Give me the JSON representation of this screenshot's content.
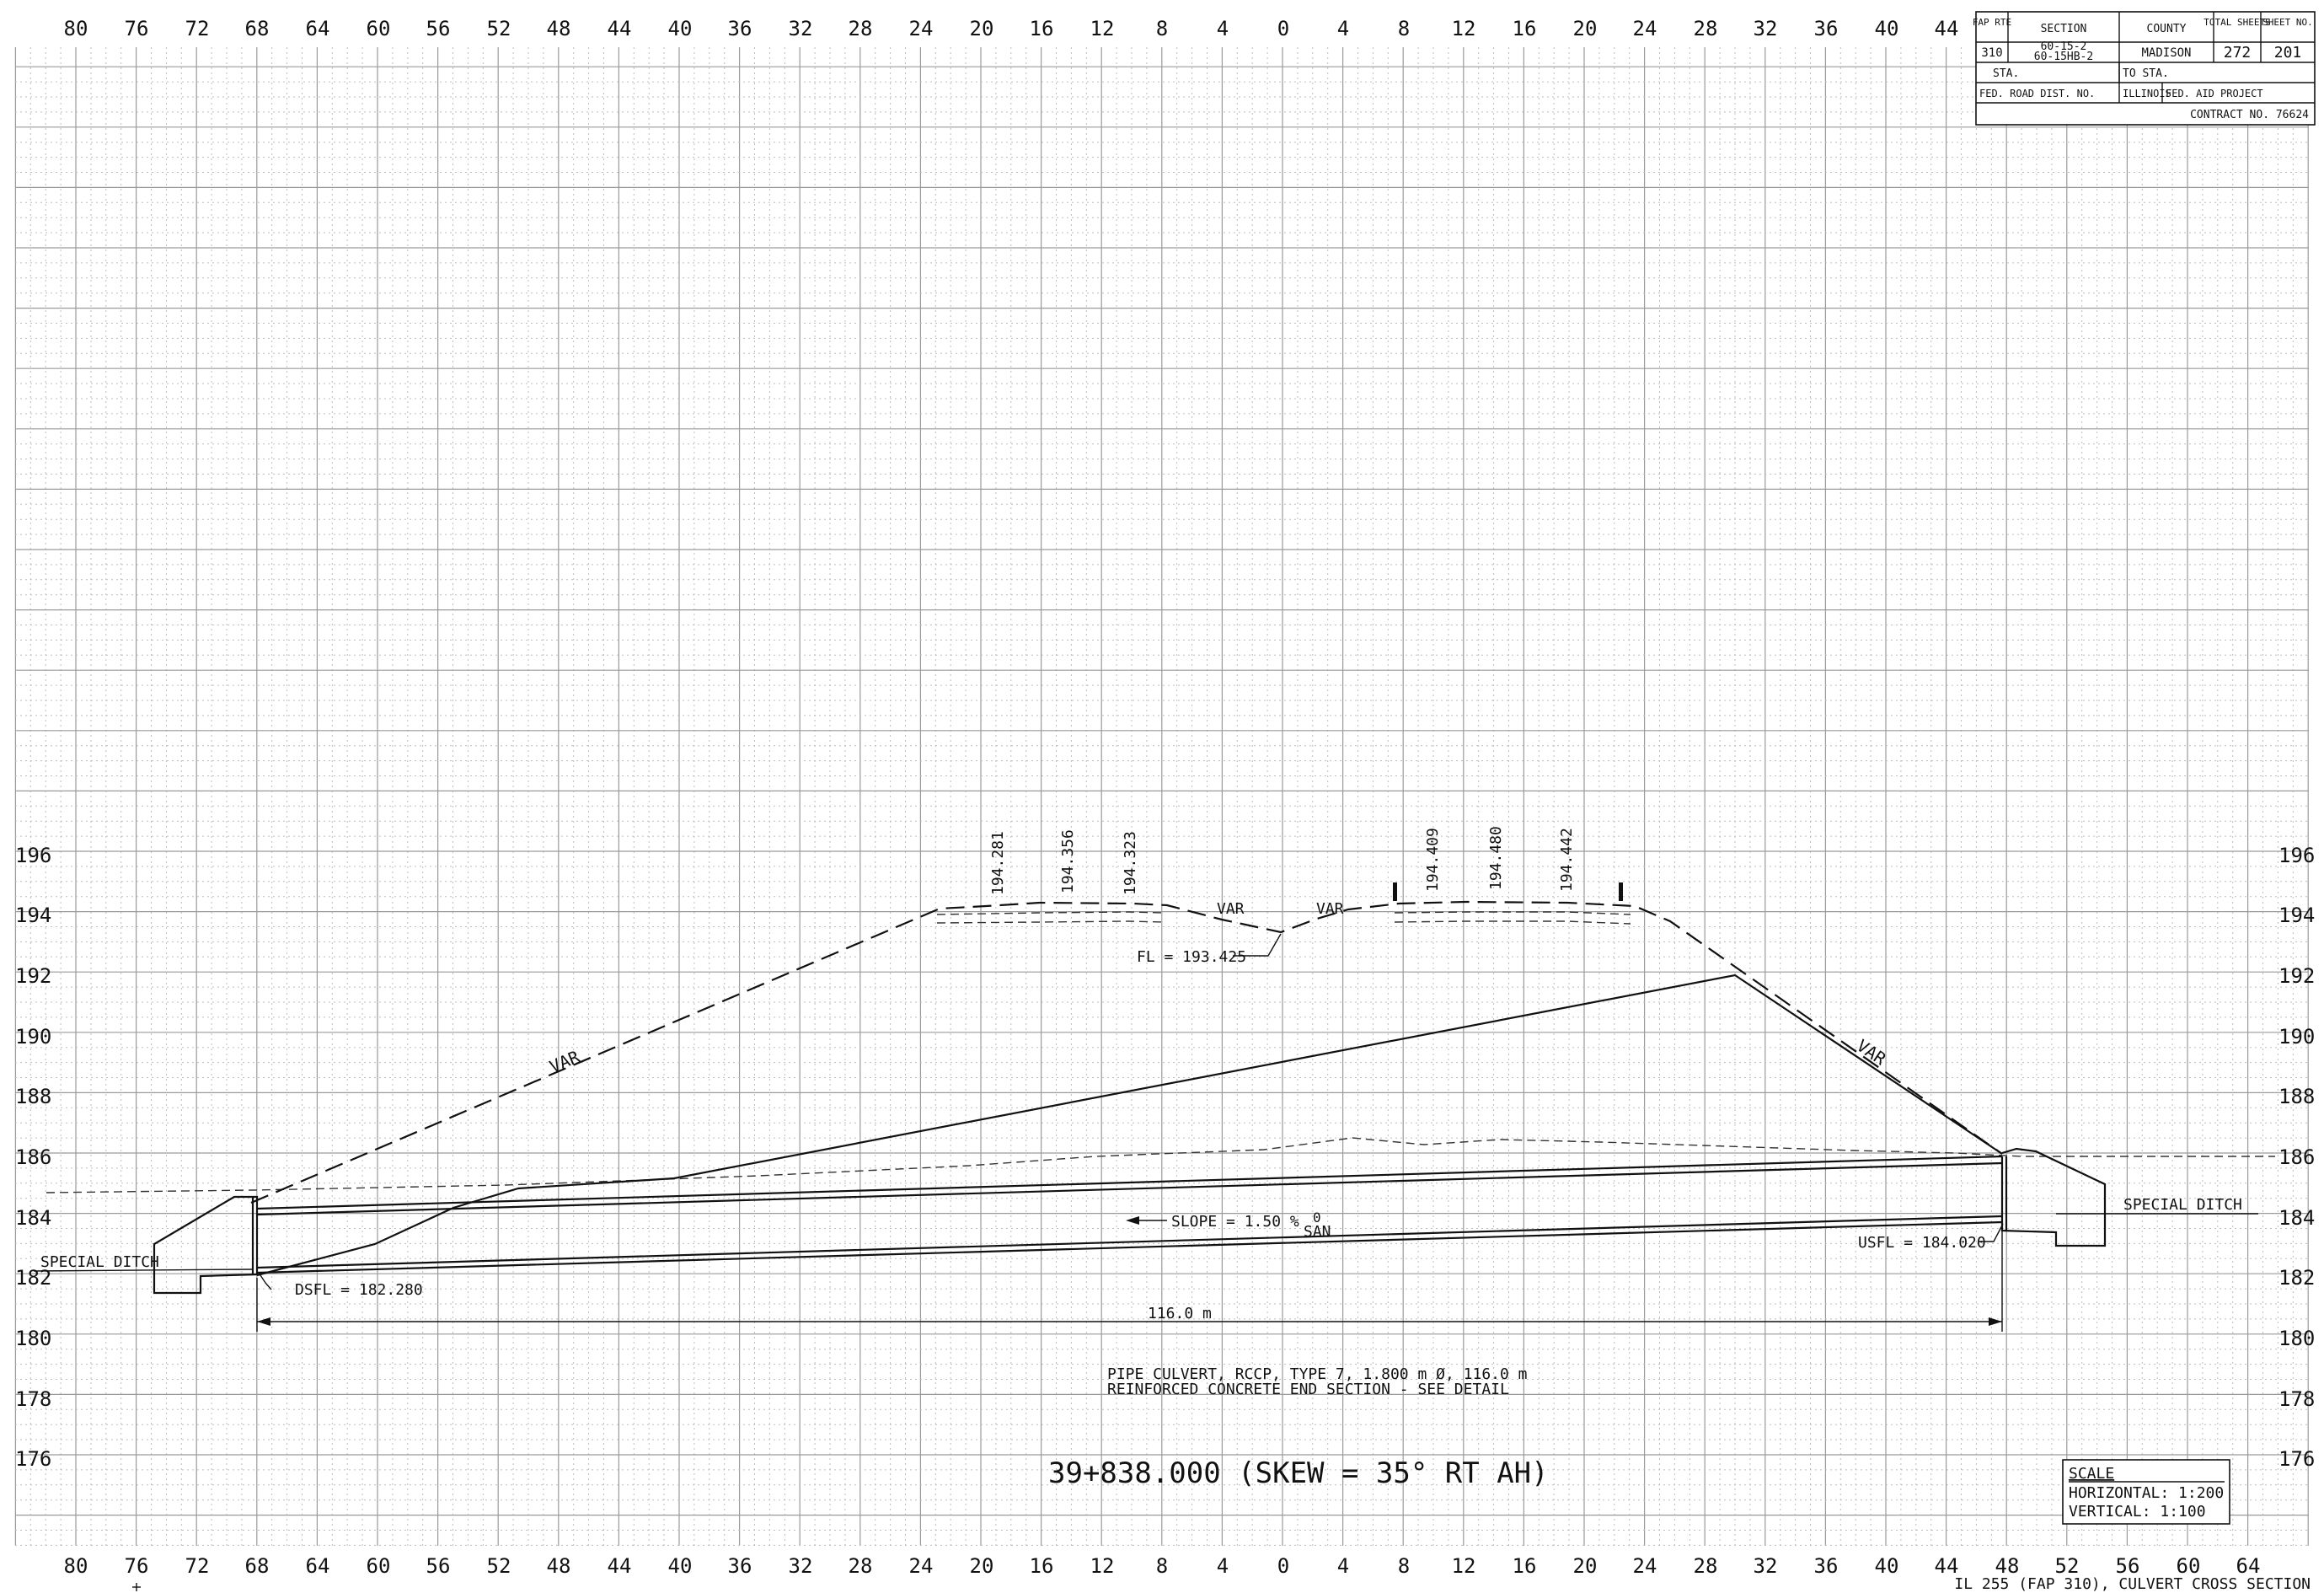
{
  "title_block": {
    "headers": [
      "FAP RTE",
      "SECTION",
      "COUNTY",
      "TOTAL SHEETS",
      "SHEET NO."
    ],
    "row": {
      "rte": "310",
      "section_1": "60-15-2",
      "section_2": "60-15HB-2",
      "county": "MADISON",
      "total_sheets": "272",
      "sheet_no": "201"
    },
    "sta_label": "STA.",
    "to_sta_label": "TO STA.",
    "fed_road_dist": "FED. ROAD DIST. NO.",
    "state": "ILLINOIS",
    "fed_aid": "FED. AID PROJECT",
    "contract": "CONTRACT NO. 76624"
  },
  "axes": {
    "top_offsets": [
      "80",
      "76",
      "72",
      "68",
      "64",
      "60",
      "56",
      "52",
      "48",
      "44",
      "40",
      "36",
      "32",
      "28",
      "24",
      "20",
      "16",
      "12",
      "8",
      "4",
      "0",
      "4",
      "8",
      "12",
      "16",
      "20",
      "24",
      "28",
      "32",
      "36",
      "40",
      "44"
    ],
    "bottom_offsets": [
      "80",
      "76",
      "72",
      "68",
      "64",
      "60",
      "56",
      "52",
      "48",
      "44",
      "40",
      "36",
      "32",
      "28",
      "24",
      "20",
      "16",
      "12",
      "8",
      "4",
      "0",
      "4",
      "8",
      "12",
      "16",
      "20",
      "24",
      "28",
      "32",
      "36",
      "40",
      "44",
      "48",
      "52",
      "56",
      "60",
      "64"
    ],
    "elevations": [
      "196",
      "194",
      "192",
      "190",
      "188",
      "186",
      "184",
      "182",
      "180",
      "178",
      "176"
    ]
  },
  "labels": {
    "elev_194_281": "194.281",
    "elev_194_356": "194.356",
    "elev_194_323": "194.323",
    "elev_194_409": "194.409",
    "elev_194_480": "194.480",
    "elev_194_442": "194.442",
    "var": "VAR",
    "fl": "FL = 193.425",
    "special_ditch": "SPECIAL DITCH",
    "slope": "SLOPE = 1.50 %",
    "san_symbol": "0",
    "san": "SAN",
    "usfl": "USFL = 184.020",
    "dsfl": "DSFL = 182.280",
    "length": "116.0 m",
    "note_1": "PIPE CULVERT, RCCP, TYPE 7, 1.800 m Ø, 116.0 m",
    "note_2": "REINFORCED CONCRETE END SECTION - SEE DETAIL",
    "station": "39+838.000  (SKEW = 35° RT AH)"
  },
  "scale_box": {
    "title": "SCALE",
    "horizontal": "HORIZONTAL:  1:200",
    "vertical": "VERTICAL:  1:100"
  },
  "footer": "IL 255 (FAP 310), CULVERT CROSS SECTION"
}
